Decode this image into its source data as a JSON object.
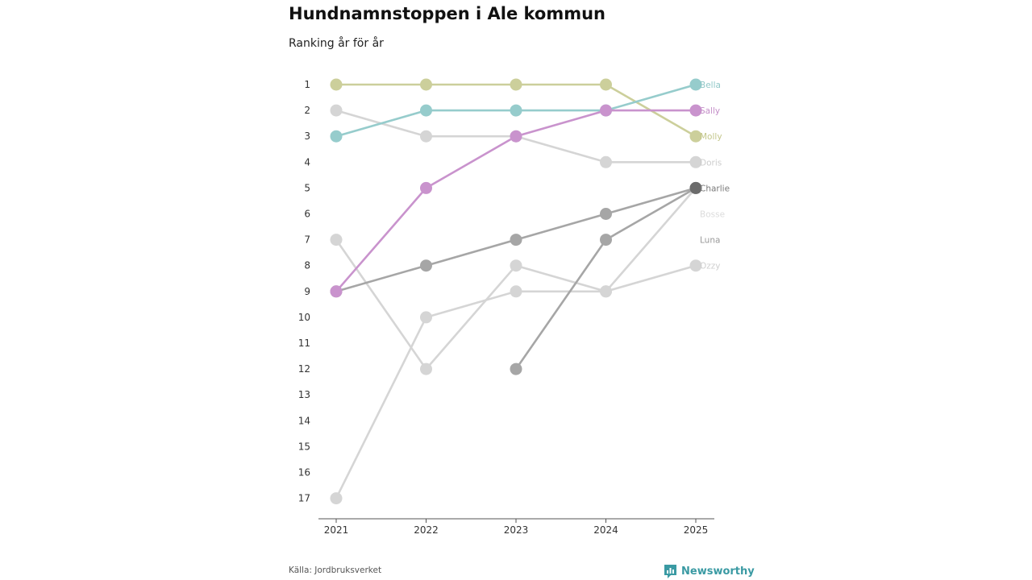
{
  "header": {
    "title": "Hundnamnstoppen i Ale kommun",
    "subtitle": "Ranking år för år"
  },
  "footer": {
    "source": "Källa: Jordbruksverket",
    "brand": "Newsworthy",
    "brand_color": "#3a9aa3"
  },
  "chart_data": {
    "type": "line",
    "subtype": "bump",
    "title": "Hundnamnstoppen i Ale kommun",
    "subtitle": "Ranking år för år",
    "xlabel": "",
    "ylabel": "",
    "x": [
      "2021",
      "2022",
      "2023",
      "2024",
      "2025"
    ],
    "y_ticks": [
      "1",
      "2",
      "3",
      "4",
      "5",
      "6",
      "7",
      "8",
      "9",
      "10",
      "11",
      "12",
      "13",
      "14",
      "15",
      "16",
      "17"
    ],
    "ylim": [
      1,
      17
    ],
    "y_reversed": true,
    "series": [
      {
        "name": "Bosse",
        "values": [
          17,
          10,
          9,
          9,
          5
        ],
        "color": "#d5d5d5",
        "label_color": "#dcdcdc"
      },
      {
        "name": "Ozzy",
        "values": [
          7,
          12,
          8,
          9,
          8
        ],
        "color": "#d5d5d5",
        "label_color": "#cfcfcf"
      },
      {
        "name": "Doris",
        "values": [
          2,
          3,
          3,
          4,
          4
        ],
        "color": "#d5d5d5",
        "label_color": "#cccccc"
      },
      {
        "name": "Luna",
        "values": [
          null,
          null,
          12,
          7,
          5
        ],
        "color": "#a6a6a6",
        "label_color": "#9a9a9a"
      },
      {
        "name": "Charlie",
        "values": [
          9,
          8,
          7,
          6,
          5
        ],
        "color": "#a6a6a6",
        "label_color": "#7a7a7a",
        "end_color": "#6b6b6b"
      },
      {
        "name": "Molly",
        "values": [
          1,
          1,
          1,
          1,
          3
        ],
        "color": "#cccf9b",
        "label_color": "#c3c68a"
      },
      {
        "name": "Bella",
        "values": [
          3,
          2,
          2,
          2,
          1
        ],
        "color": "#96cccc",
        "label_color": "#8fc7c7"
      },
      {
        "name": "Sally",
        "values": [
          9,
          5,
          3,
          2,
          2
        ],
        "color": "#c993cd",
        "label_color": "#c48ec8"
      }
    ]
  }
}
